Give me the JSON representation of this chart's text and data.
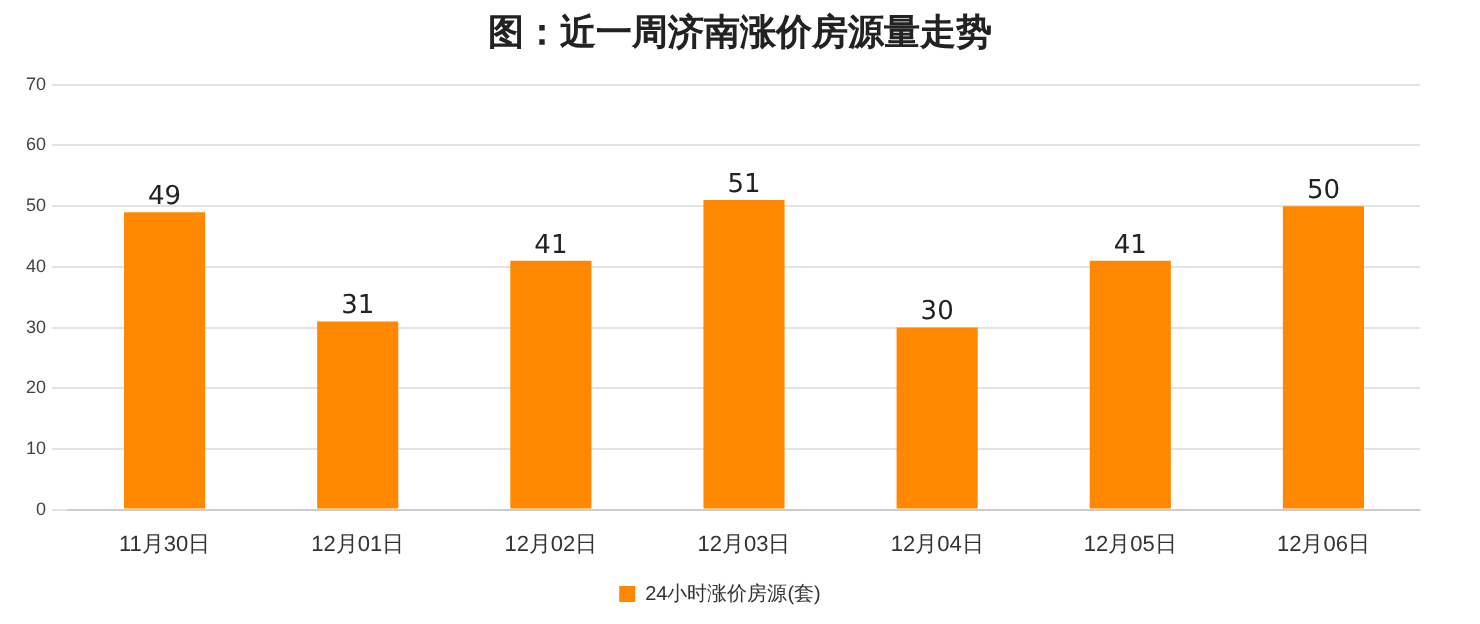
{
  "chart_data": {
    "type": "bar",
    "title": "图：近一周济南涨价房源量走势",
    "categories": [
      "11月30日",
      "12月01日",
      "12月02日",
      "12月03日",
      "12月04日",
      "12月05日",
      "12月06日"
    ],
    "series": [
      {
        "name": "24小时涨价房源(套)",
        "color": "#ff8800",
        "values": [
          49,
          31,
          41,
          51,
          30,
          41,
          50
        ]
      }
    ],
    "ylim": [
      0,
      70
    ],
    "yticks": [
      0,
      10,
      20,
      30,
      40,
      50,
      60,
      70
    ],
    "grid": "y",
    "legend": "bottom",
    "data_labels": true
  }
}
